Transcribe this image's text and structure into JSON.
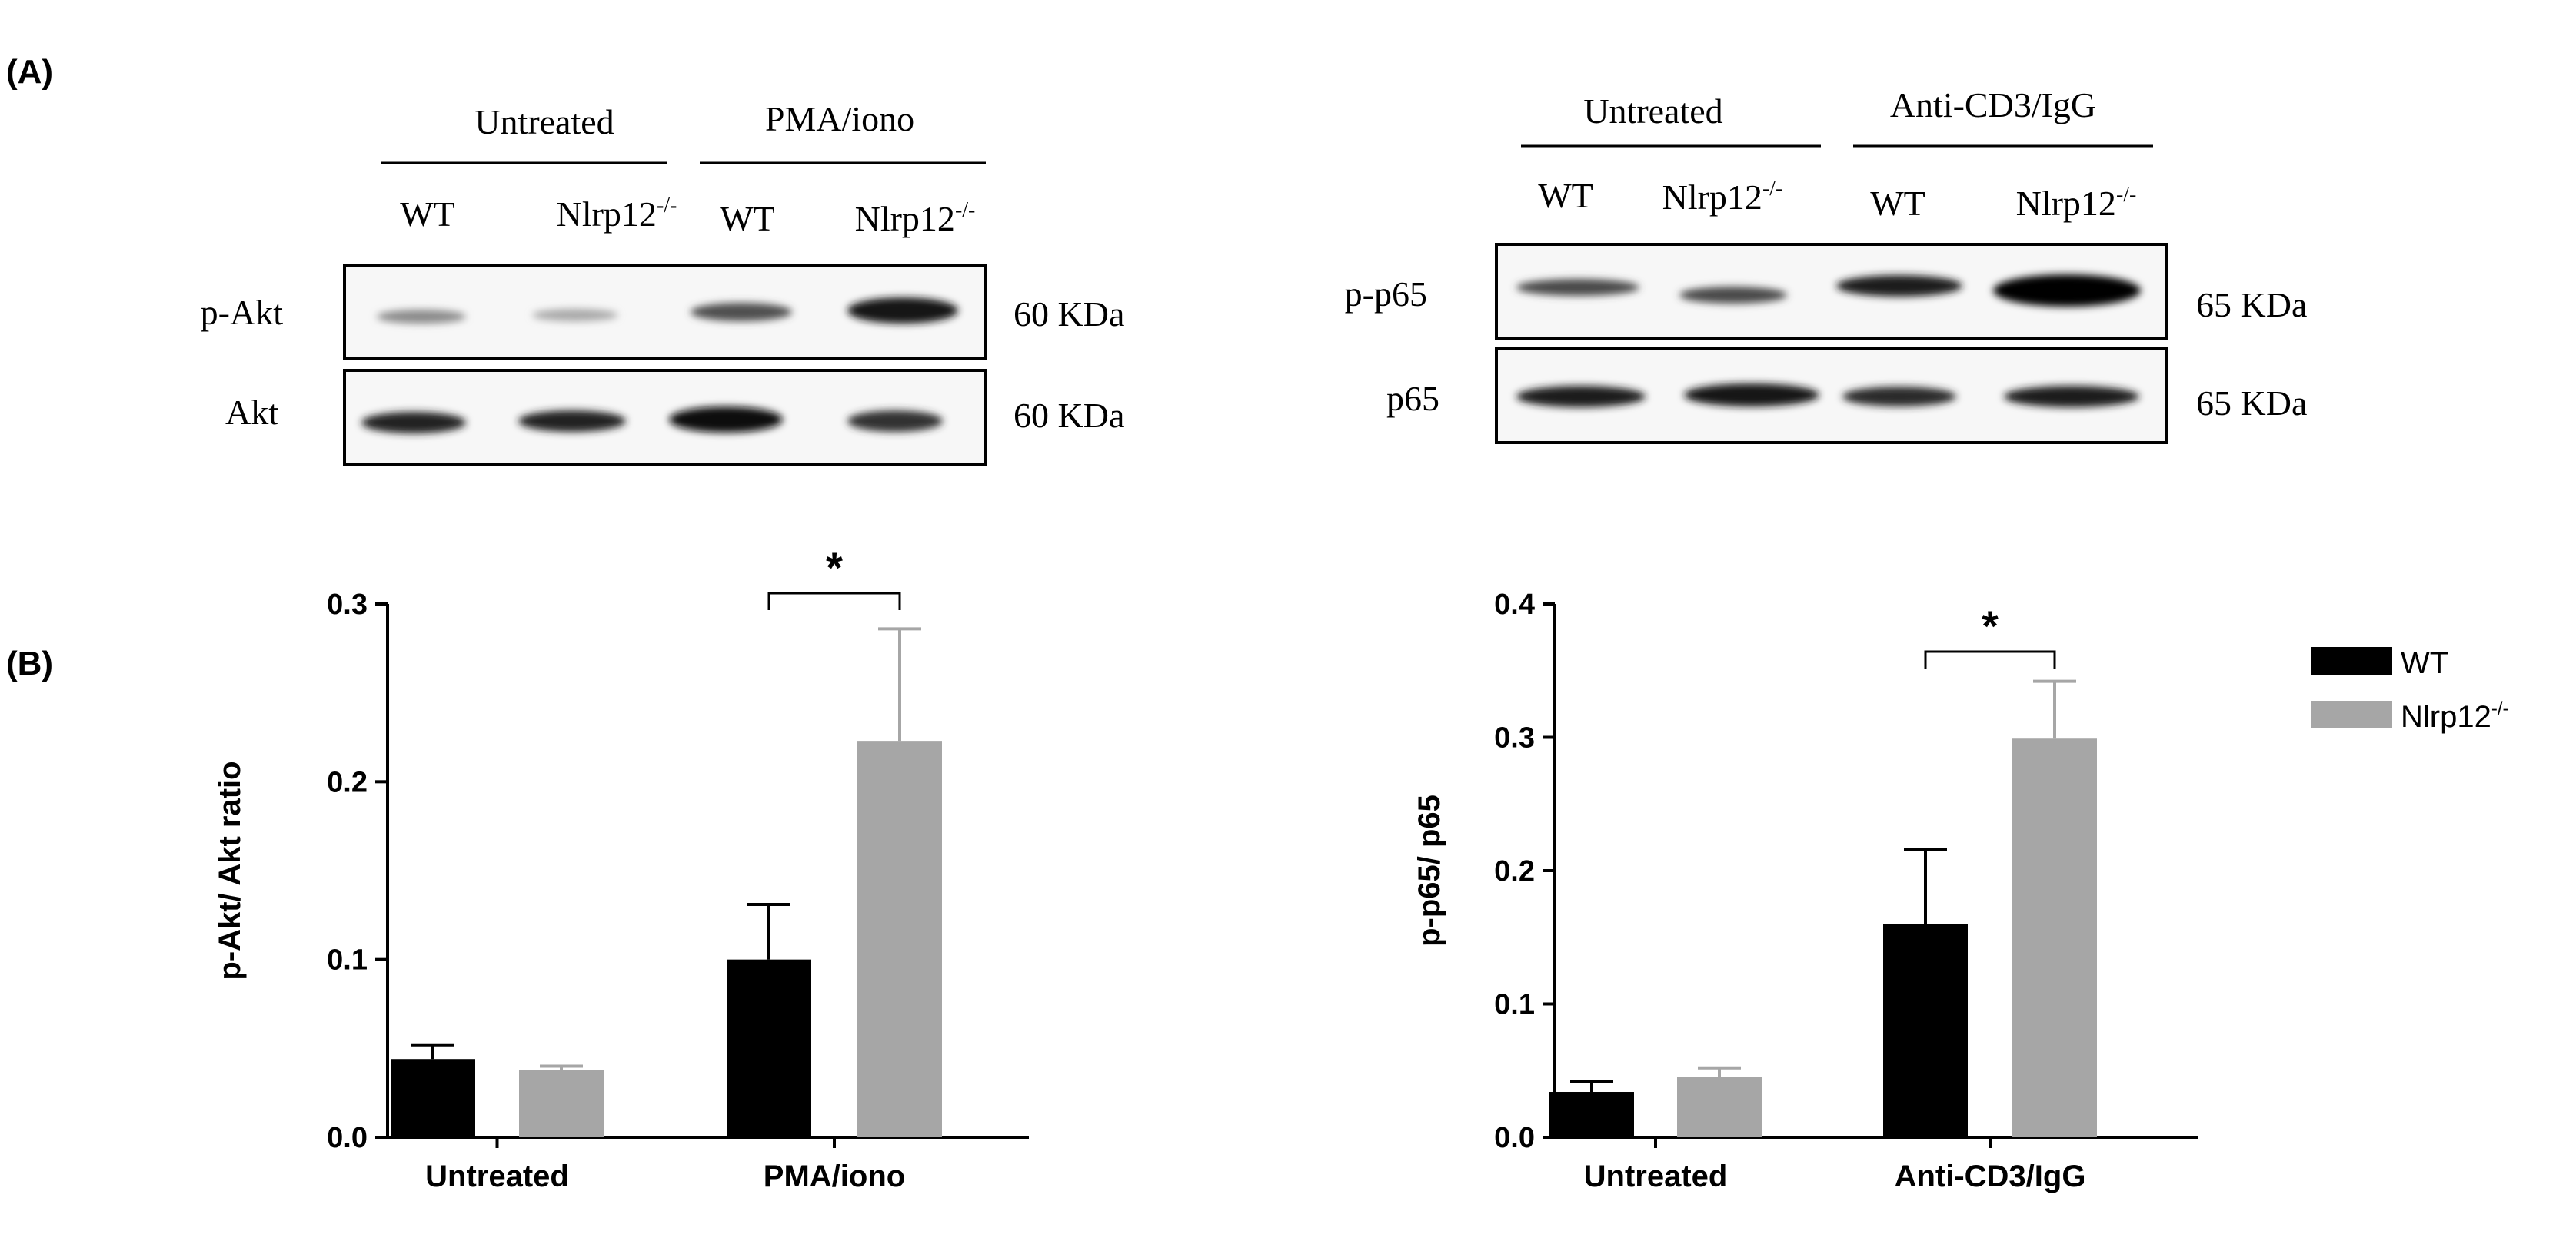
{
  "panel_a_label": "(A)",
  "panel_b_label": "(B)",
  "blot_left": {
    "group_labels": [
      "Untreated",
      "PMA/iono"
    ],
    "lane_labels": [
      {
        "base": "WT",
        "sup": ""
      },
      {
        "base": "Nlrp12",
        "sup": "-/-"
      },
      {
        "base": "WT",
        "sup": ""
      },
      {
        "base": "Nlrp12",
        "sup": "-/-"
      }
    ],
    "rows": [
      {
        "label": "p-Akt",
        "size": "60 KDa"
      },
      {
        "label": "Akt",
        "size": "60 KDa"
      }
    ]
  },
  "blot_right": {
    "group_labels": [
      "Untreated",
      "Anti-CD3/IgG"
    ],
    "lane_labels": [
      {
        "base": "WT",
        "sup": ""
      },
      {
        "base": "Nlrp12",
        "sup": "-/-"
      },
      {
        "base": "WT",
        "sup": ""
      },
      {
        "base": "Nlrp12",
        "sup": "-/-"
      }
    ],
    "rows": [
      {
        "label": "p-p65",
        "size": "65 KDa"
      },
      {
        "label": "p65",
        "size": "65 KDa"
      }
    ]
  },
  "legend": [
    {
      "base": "WT",
      "sup": "",
      "color": "#000000"
    },
    {
      "base": "Nlrp12",
      "sup": "-/-",
      "color": "#a6a6a6"
    }
  ],
  "colors": {
    "wt": "#000000",
    "ko": "#a6a6a6"
  },
  "chart_data": [
    {
      "type": "bar",
      "categories": [
        "Untreated",
        "PMA/iono"
      ],
      "series": [
        {
          "name": "WT",
          "values": [
            0.044,
            0.1
          ],
          "errors": [
            0.008,
            0.031
          ]
        },
        {
          "name": "Nlrp12-/-",
          "values": [
            0.038,
            0.223
          ],
          "errors": [
            0.002,
            0.063
          ]
        }
      ],
      "ylabel": "p-Akt/ Akt ratio",
      "ylim": [
        0,
        0.3
      ],
      "yticks": [
        "0.0",
        "0.1",
        "0.2",
        "0.3"
      ],
      "significance": [
        {
          "category": "PMA/iono",
          "text": "*"
        }
      ]
    },
    {
      "type": "bar",
      "categories": [
        "Untreated",
        "Anti-CD3/IgG"
      ],
      "series": [
        {
          "name": "WT",
          "values": [
            0.034,
            0.16
          ],
          "errors": [
            0.008,
            0.056
          ]
        },
        {
          "name": "Nlrp12-/-",
          "values": [
            0.045,
            0.299
          ],
          "errors": [
            0.007,
            0.043
          ]
        }
      ],
      "ylabel": "p-p65/ p65",
      "ylim": [
        0,
        0.4
      ],
      "yticks": [
        "0.0",
        "0.1",
        "0.2",
        "0.3",
        "0.4"
      ],
      "significance": [
        {
          "category": "Anti-CD3/IgG",
          "text": "*"
        }
      ]
    }
  ]
}
